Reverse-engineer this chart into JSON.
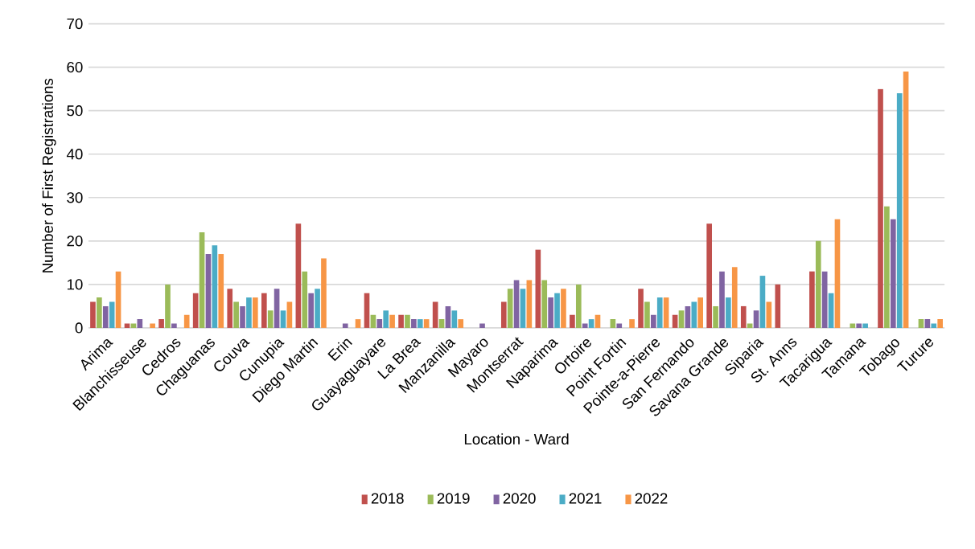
{
  "chart_data": {
    "type": "bar",
    "xlabel": "Location - Ward",
    "ylabel": "Number of First Registrations",
    "categories": [
      "Arima",
      "Blanchisseuse",
      "Cedros",
      "Chaguanas",
      "Couva",
      "Cunupia",
      "Diego Martin",
      "Erin",
      "Guayaguayare",
      "La Brea",
      "Manzanilla",
      "Mayaro",
      "Montserrat",
      "Naparima",
      "Ortoire",
      "Point Fortin",
      "Pointe-a-Pierre",
      "San Fernando",
      "Savana Grande",
      "Siparia",
      "St. Anns",
      "Tacarigua",
      "Tamana",
      "Tobago",
      "Turure"
    ],
    "series": [
      {
        "name": "2018",
        "color": "#c0504d",
        "values": [
          6,
          1,
          2,
          8,
          9,
          8,
          24,
          null,
          8,
          3,
          6,
          null,
          6,
          18,
          3,
          null,
          9,
          3,
          24,
          5,
          10,
          13,
          null,
          55,
          null
        ]
      },
      {
        "name": "2019",
        "color": "#9bbb59",
        "values": [
          7,
          1,
          10,
          22,
          6,
          4,
          13,
          null,
          3,
          3,
          2,
          null,
          9,
          11,
          10,
          2,
          6,
          4,
          5,
          1,
          null,
          20,
          1,
          28,
          2
        ]
      },
      {
        "name": "2020",
        "color": "#8064a2",
        "values": [
          5,
          2,
          1,
          17,
          5,
          9,
          8,
          1,
          2,
          2,
          5,
          1,
          11,
          7,
          1,
          1,
          3,
          5,
          13,
          4,
          null,
          13,
          1,
          25,
          2
        ]
      },
      {
        "name": "2021",
        "color": "#4bacc6",
        "values": [
          6,
          null,
          null,
          19,
          7,
          4,
          9,
          null,
          4,
          2,
          4,
          null,
          9,
          8,
          2,
          null,
          7,
          6,
          7,
          12,
          null,
          8,
          1,
          54,
          1
        ]
      },
      {
        "name": "2022",
        "color": "#f79646",
        "values": [
          13,
          1,
          3,
          17,
          7,
          6,
          16,
          2,
          3,
          2,
          2,
          null,
          11,
          9,
          3,
          2,
          7,
          7,
          14,
          6,
          null,
          25,
          null,
          59,
          2
        ]
      }
    ],
    "ylim": [
      0,
      70
    ],
    "yticks": [
      0,
      10,
      20,
      30,
      40,
      50,
      60,
      70
    ],
    "grid": "y",
    "legend": "bottom"
  }
}
